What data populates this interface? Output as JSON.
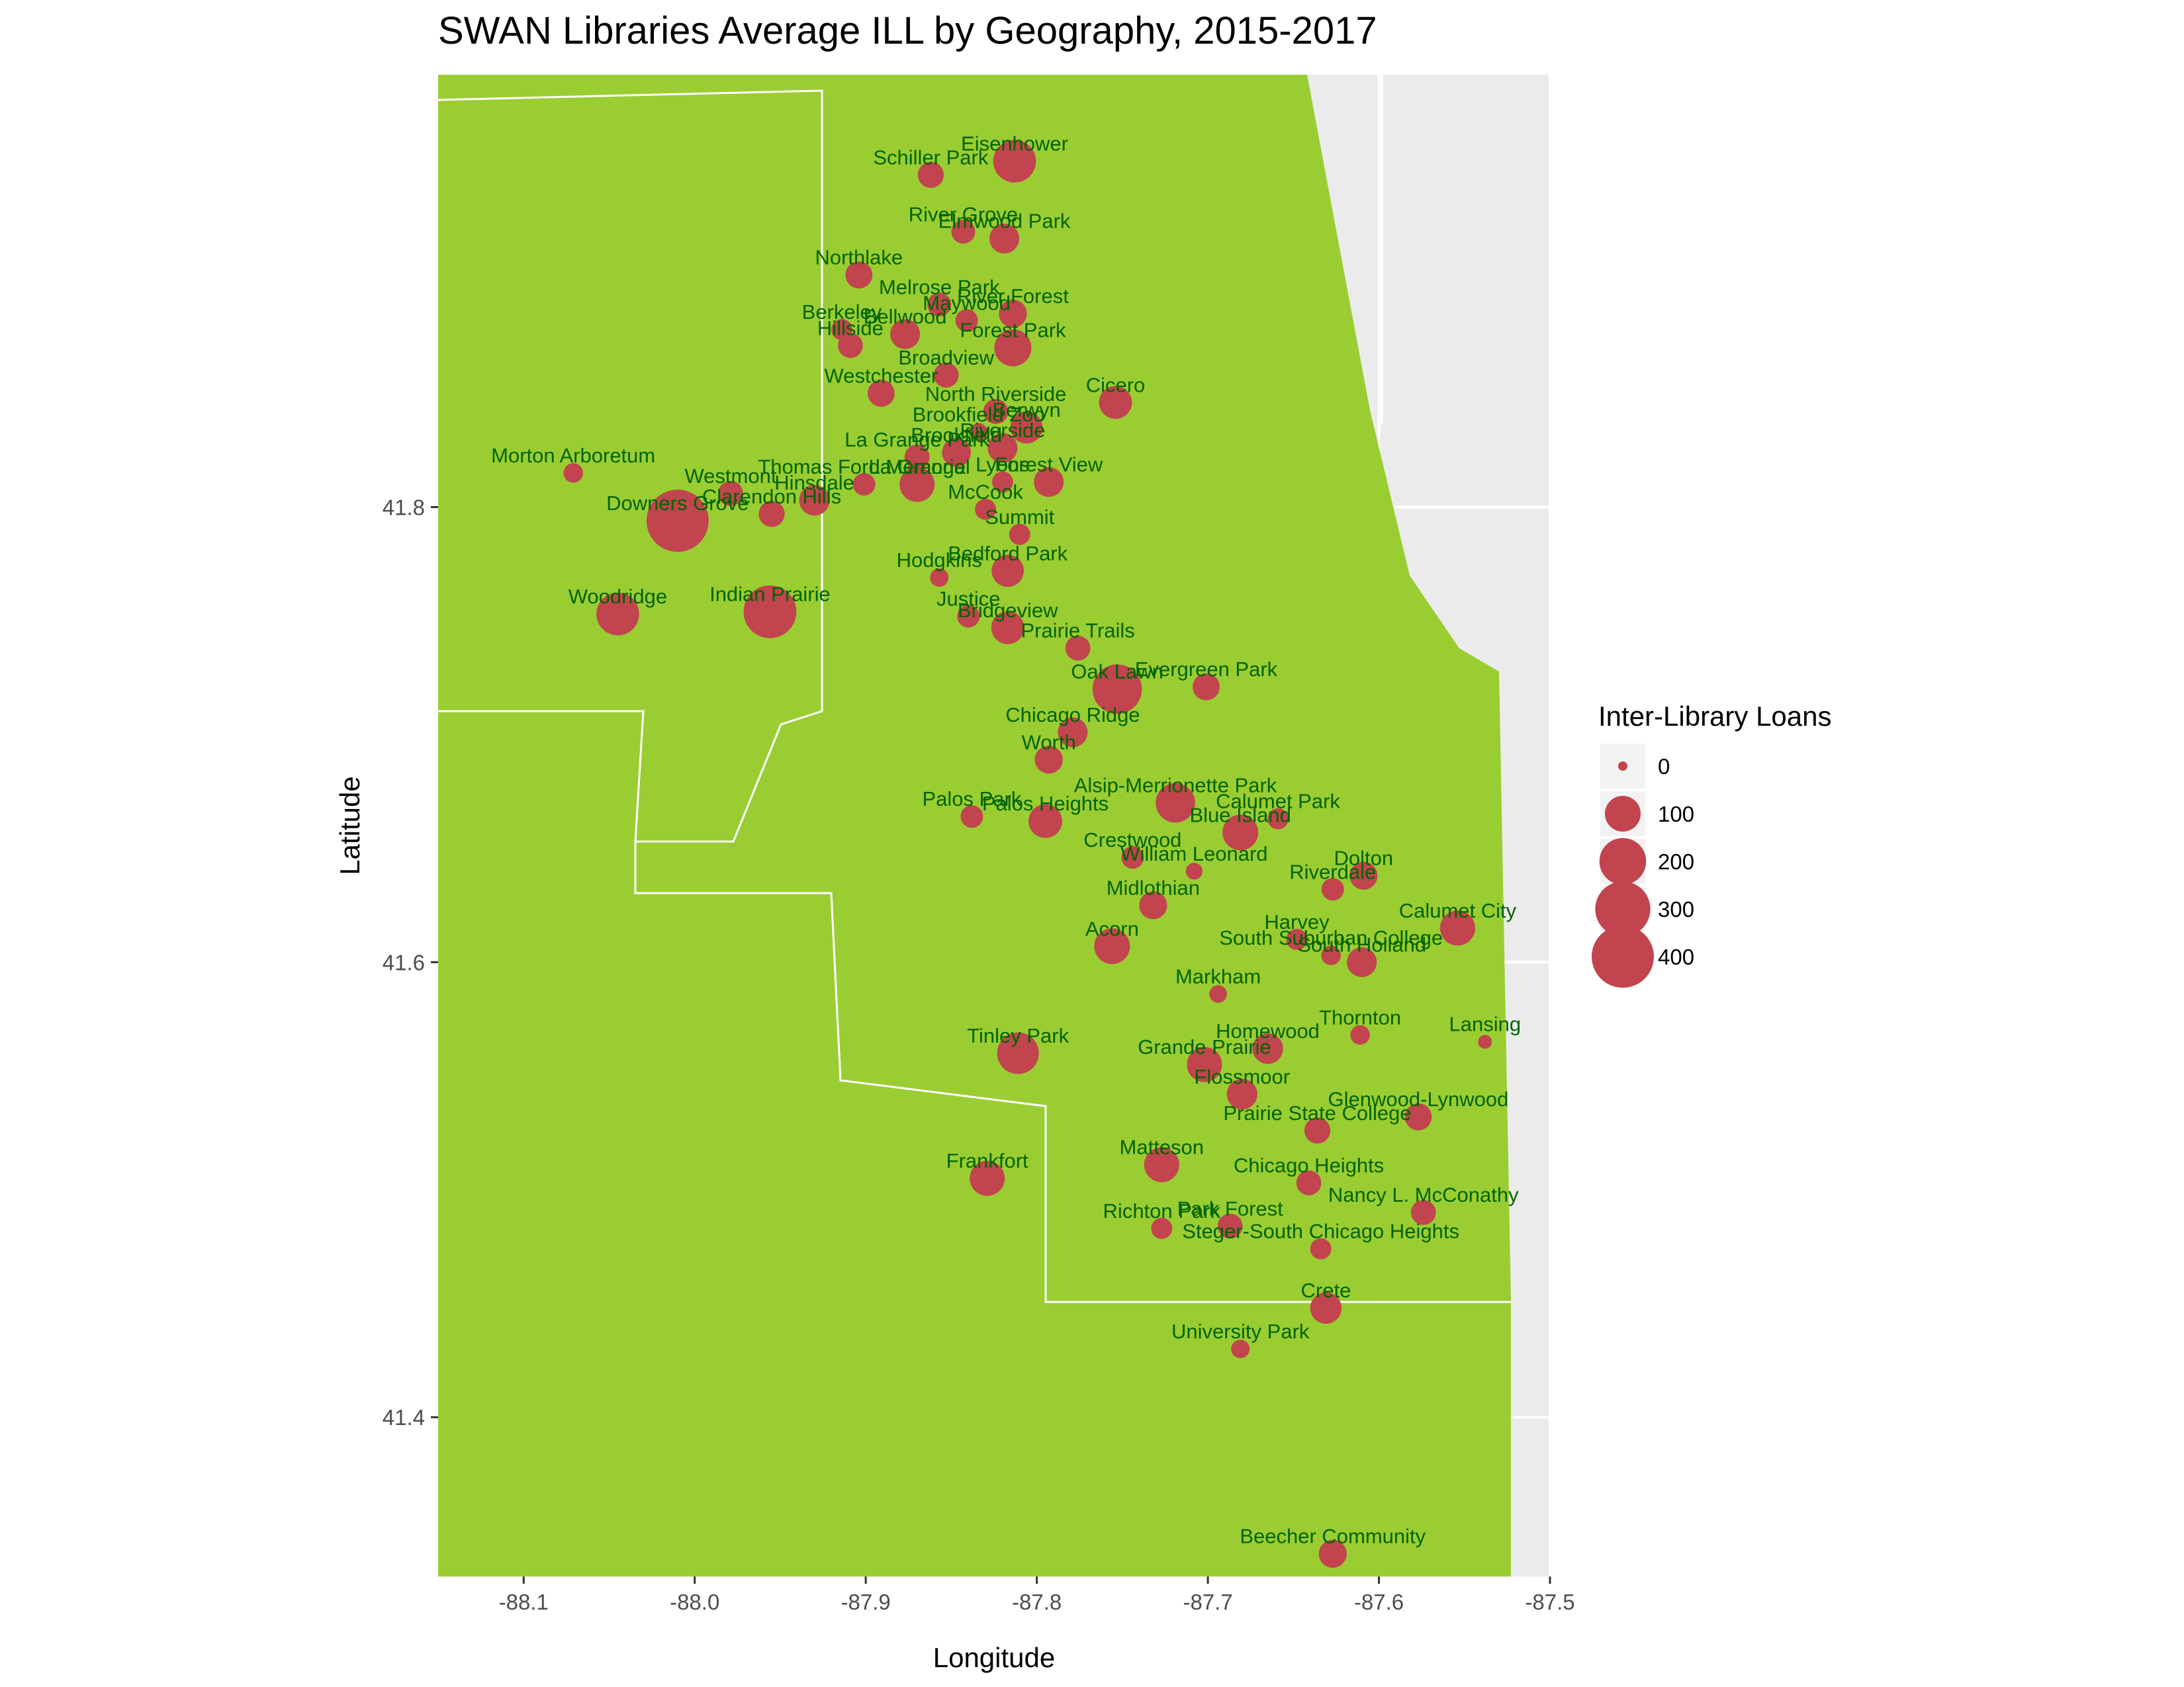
{
  "chart_data": {
    "type": "scatter",
    "title": "SWAN Libraries Average ILL by Geography, 2015-2017",
    "xlabel": "Longitude",
    "ylabel": "Latitude",
    "xlim": [
      -88.15,
      -87.5
    ],
    "ylim": [
      41.33,
      41.99
    ],
    "x_ticks": [
      -88.1,
      -88.0,
      -87.9,
      -87.8,
      -87.7,
      -87.6,
      -87.5
    ],
    "x_tick_labels": [
      "-88.1",
      "-88.0",
      "-87.9",
      "-87.8",
      "-87.7",
      "-87.6",
      "-87.5"
    ],
    "y_ticks": [
      41.4,
      41.6,
      41.8
    ],
    "y_tick_labels": [
      "41.4",
      "41.6",
      "41.8"
    ],
    "grid": true,
    "legend": {
      "title": "Inter-Library Loans",
      "position": "right",
      "entries": [
        {
          "label": "0",
          "value": 0
        },
        {
          "label": "100",
          "value": 100
        },
        {
          "label": "200",
          "value": 200
        },
        {
          "label": "300",
          "value": 300
        },
        {
          "label": "400",
          "value": 400
        }
      ]
    },
    "colors": {
      "land": "#9ACD32",
      "water_panel": "#EBEBEB",
      "grid": "#FFFFFF",
      "point": "#C1444E",
      "label": "#006400",
      "boundary": "#FFFFFF"
    },
    "points": [
      {
        "name": "Eisenhower",
        "lon": -87.813,
        "lat": 41.952,
        "ill": 160
      },
      {
        "name": "Schiller Park",
        "lon": -87.862,
        "lat": 41.946,
        "ill": 40
      },
      {
        "name": "River Grove",
        "lon": -87.843,
        "lat": 41.921,
        "ill": 30
      },
      {
        "name": "Elmwood Park",
        "lon": -87.819,
        "lat": 41.918,
        "ill": 60
      },
      {
        "name": "Northlake",
        "lon": -87.904,
        "lat": 41.902,
        "ill": 45
      },
      {
        "name": "Melrose Park",
        "lon": -87.857,
        "lat": 41.889,
        "ill": 30
      },
      {
        "name": "River Forest",
        "lon": -87.814,
        "lat": 41.885,
        "ill": 50
      },
      {
        "name": "Maywood",
        "lon": -87.841,
        "lat": 41.882,
        "ill": 25
      },
      {
        "name": "Bellwood",
        "lon": -87.877,
        "lat": 41.876,
        "ill": 60
      },
      {
        "name": "Berkeley",
        "lon": -87.914,
        "lat": 41.878,
        "ill": 20
      },
      {
        "name": "Hillside",
        "lon": -87.909,
        "lat": 41.871,
        "ill": 35
      },
      {
        "name": "Forest Park",
        "lon": -87.814,
        "lat": 41.87,
        "ill": 110
      },
      {
        "name": "Broadview",
        "lon": -87.853,
        "lat": 41.858,
        "ill": 35
      },
      {
        "name": "Westchester",
        "lon": -87.891,
        "lat": 41.85,
        "ill": 45
      },
      {
        "name": "Cicero",
        "lon": -87.754,
        "lat": 41.846,
        "ill": 80
      },
      {
        "name": "North Riverside",
        "lon": -87.824,
        "lat": 41.842,
        "ill": 35
      },
      {
        "name": "Berwyn",
        "lon": -87.806,
        "lat": 41.835,
        "ill": 75
      },
      {
        "name": "Brookfield Zoo",
        "lon": -87.834,
        "lat": 41.833,
        "ill": 10
      },
      {
        "name": "Brookfield",
        "lon": -87.847,
        "lat": 41.824,
        "ill": 55
      },
      {
        "name": "Riverside",
        "lon": -87.82,
        "lat": 41.826,
        "ill": 60
      },
      {
        "name": "La Grange Park",
        "lon": -87.87,
        "lat": 41.822,
        "ill": 35
      },
      {
        "name": "Lyons",
        "lon": -87.82,
        "lat": 41.811,
        "ill": 20
      },
      {
        "name": "Forest View",
        "lon": -87.793,
        "lat": 41.811,
        "ill": 60
      },
      {
        "name": "La Grange",
        "lon": -87.87,
        "lat": 41.81,
        "ill": 95
      },
      {
        "name": "Thomas Ford Memorial",
        "lon": -87.901,
        "lat": 41.81,
        "ill": 25
      },
      {
        "name": "Morton Arboretum",
        "lon": -88.071,
        "lat": 41.815,
        "ill": 15
      },
      {
        "name": "Westmont",
        "lon": -87.979,
        "lat": 41.806,
        "ill": 35
      },
      {
        "name": "Hinsdale",
        "lon": -87.93,
        "lat": 41.803,
        "ill": 65
      },
      {
        "name": "Clarendon Hills",
        "lon": -87.955,
        "lat": 41.797,
        "ill": 40
      },
      {
        "name": "Downers Grove",
        "lon": -88.01,
        "lat": 41.794,
        "ill": 400
      },
      {
        "name": "McCook",
        "lon": -87.83,
        "lat": 41.799,
        "ill": 20
      },
      {
        "name": "Summit",
        "lon": -87.81,
        "lat": 41.788,
        "ill": 20
      },
      {
        "name": "Bedford Park",
        "lon": -87.817,
        "lat": 41.772,
        "ill": 75
      },
      {
        "name": "Hodgkins",
        "lon": -87.857,
        "lat": 41.769,
        "ill": 12
      },
      {
        "name": "Woodridge",
        "lon": -88.045,
        "lat": 41.753,
        "ill": 160
      },
      {
        "name": "Indian Prairie",
        "lon": -87.956,
        "lat": 41.754,
        "ill": 270
      },
      {
        "name": "Justice",
        "lon": -87.84,
        "lat": 41.752,
        "ill": 25
      },
      {
        "name": "Bridgeview",
        "lon": -87.817,
        "lat": 41.747,
        "ill": 80
      },
      {
        "name": "Prairie Trails",
        "lon": -87.776,
        "lat": 41.738,
        "ill": 35
      },
      {
        "name": "Oak Lawn",
        "lon": -87.753,
        "lat": 41.72,
        "ill": 230
      },
      {
        "name": "Evergreen Park",
        "lon": -87.701,
        "lat": 41.721,
        "ill": 45
      },
      {
        "name": "Chicago Ridge",
        "lon": -87.779,
        "lat": 41.701,
        "ill": 60
      },
      {
        "name": "Worth",
        "lon": -87.793,
        "lat": 41.689,
        "ill": 50
      },
      {
        "name": "Alsip-Merrionette Park",
        "lon": -87.719,
        "lat": 41.67,
        "ill": 130
      },
      {
        "name": "Palos Park",
        "lon": -87.838,
        "lat": 41.664,
        "ill": 25
      },
      {
        "name": "Palos Heights",
        "lon": -87.795,
        "lat": 41.662,
        "ill": 85
      },
      {
        "name": "Calumet Park",
        "lon": -87.659,
        "lat": 41.663,
        "ill": 20
      },
      {
        "name": "Blue Island",
        "lon": -87.681,
        "lat": 41.657,
        "ill": 100
      },
      {
        "name": "Crestwood",
        "lon": -87.744,
        "lat": 41.646,
        "ill": 25
      },
      {
        "name": "William Leonard",
        "lon": -87.708,
        "lat": 41.64,
        "ill": 8
      },
      {
        "name": "Riverdale",
        "lon": -87.627,
        "lat": 41.632,
        "ill": 25
      },
      {
        "name": "Dolton",
        "lon": -87.609,
        "lat": 41.638,
        "ill": 50
      },
      {
        "name": "Midlothian",
        "lon": -87.732,
        "lat": 41.625,
        "ill": 50
      },
      {
        "name": "Calumet City",
        "lon": -87.554,
        "lat": 41.615,
        "ill": 95
      },
      {
        "name": "Harvey",
        "lon": -87.648,
        "lat": 41.61,
        "ill": 20
      },
      {
        "name": "South Suburban College",
        "lon": -87.628,
        "lat": 41.603,
        "ill": 15
      },
      {
        "name": "Acorn",
        "lon": -87.756,
        "lat": 41.607,
        "ill": 100
      },
      {
        "name": "South Holland",
        "lon": -87.61,
        "lat": 41.6,
        "ill": 60
      },
      {
        "name": "Markham",
        "lon": -87.694,
        "lat": 41.586,
        "ill": 10
      },
      {
        "name": "Thornton",
        "lon": -87.611,
        "lat": 41.568,
        "ill": 15
      },
      {
        "name": "Lansing",
        "lon": -87.538,
        "lat": 41.565,
        "ill": 3
      },
      {
        "name": "Homewood",
        "lon": -87.665,
        "lat": 41.562,
        "ill": 65
      },
      {
        "name": "Tinley Park",
        "lon": -87.811,
        "lat": 41.56,
        "ill": 150
      },
      {
        "name": "Grande Prairie",
        "lon": -87.702,
        "lat": 41.555,
        "ill": 95
      },
      {
        "name": "Flossmoor",
        "lon": -87.68,
        "lat": 41.542,
        "ill": 65
      },
      {
        "name": "Glenwood-Lynwood",
        "lon": -87.577,
        "lat": 41.532,
        "ill": 45
      },
      {
        "name": "Prairie State College",
        "lon": -87.636,
        "lat": 41.526,
        "ill": 40
      },
      {
        "name": "Matteson",
        "lon": -87.727,
        "lat": 41.511,
        "ill": 95
      },
      {
        "name": "Frankfort",
        "lon": -87.829,
        "lat": 41.505,
        "ill": 95
      },
      {
        "name": "Chicago Heights",
        "lon": -87.641,
        "lat": 41.503,
        "ill": 35
      },
      {
        "name": "Nancy L. McConathy",
        "lon": -87.574,
        "lat": 41.49,
        "ill": 35
      },
      {
        "name": "Richton Park",
        "lon": -87.727,
        "lat": 41.483,
        "ill": 20
      },
      {
        "name": "Park Forest",
        "lon": -87.687,
        "lat": 41.484,
        "ill": 35
      },
      {
        "name": "Steger-South Chicago Heights",
        "lon": -87.634,
        "lat": 41.474,
        "ill": 20
      },
      {
        "name": "Crete",
        "lon": -87.631,
        "lat": 41.448,
        "ill": 70
      },
      {
        "name": "University Park",
        "lon": -87.681,
        "lat": 41.43,
        "ill": 12
      },
      {
        "name": "Beecher Community",
        "lon": -87.627,
        "lat": 41.34,
        "ill": 50
      }
    ]
  }
}
